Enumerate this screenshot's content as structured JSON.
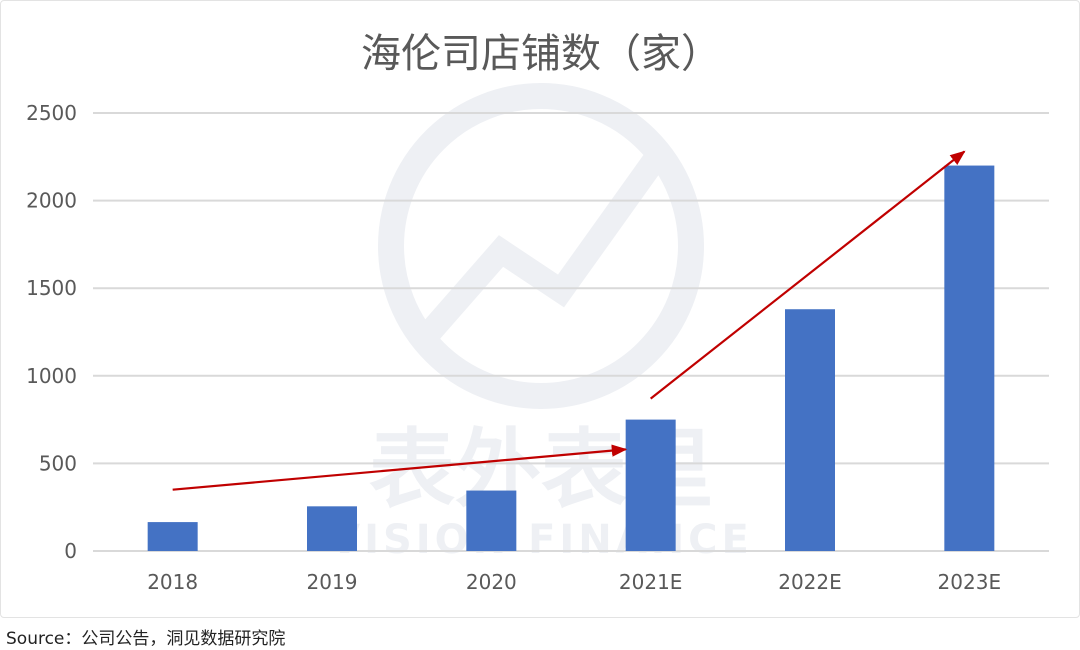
{
  "chart_data": {
    "type": "bar",
    "title": "海伦司店铺数（家）",
    "categories": [
      "2018",
      "2019",
      "2020",
      "2021E",
      "2022E",
      "2023E"
    ],
    "values": [
      165,
      255,
      345,
      750,
      1380,
      2200
    ],
    "ylim": [
      0,
      2500
    ],
    "yticks": [
      0,
      500,
      1000,
      1500,
      2000,
      2500
    ],
    "grid": true,
    "legend": "none",
    "bar_color": "#4472c4",
    "grid_color": "#d9d9d9",
    "arrow_color": "#c00000",
    "trend_arrows": [
      {
        "from": {
          "category": "2018",
          "value": 350
        },
        "to": {
          "category": "2021E",
          "value": 580
        }
      },
      {
        "from": {
          "category": "2021E",
          "value": 870
        },
        "to": {
          "category": "2023E",
          "value": 2280
        }
      }
    ]
  },
  "watermark": {
    "cn": "表外表里",
    "en": "VISION FINANCE"
  },
  "source": "Source：公司公告，洞见数据研究院"
}
